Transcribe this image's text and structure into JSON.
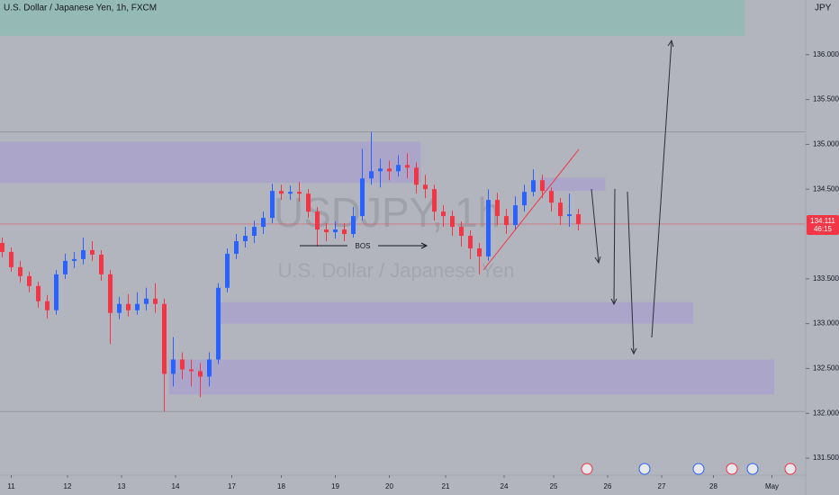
{
  "chart_data": {
    "type": "candlestick",
    "title": "U.S. Dollar / Japanese Yen, 1h, FXCM",
    "currency": "JPY",
    "watermark": [
      "USDJPY, 1h",
      "U.S. Dollar / Japanese Yen"
    ],
    "annotation": "BOS",
    "up_color": "#2962ff",
    "down_color": "#f23645",
    "x": [
      1,
      5,
      9,
      13,
      17,
      21,
      25,
      29,
      33,
      37,
      41,
      45,
      49,
      53,
      57,
      61,
      65,
      69,
      73,
      77,
      81,
      85,
      89,
      93,
      97,
      101,
      105,
      109,
      113,
      117,
      121,
      125,
      129,
      133,
      137,
      141,
      145,
      149,
      153,
      157,
      161,
      165,
      169,
      173,
      177,
      181,
      185,
      189,
      193,
      197,
      201,
      205,
      209,
      213,
      217,
      221,
      225,
      229,
      233,
      237,
      241,
      245,
      249,
      253,
      257
    ],
    "open": [
      133.9,
      133.8,
      133.63,
      133.53,
      133.42,
      133.25,
      133.15,
      133.55,
      133.7,
      133.72,
      133.82,
      133.77,
      133.55,
      133.12,
      133.22,
      133.15,
      133.22,
      133.28,
      133.22,
      132.44,
      132.6,
      132.49,
      132.47,
      132.41,
      132.6,
      133.4,
      133.78,
      133.92,
      133.98,
      134.08,
      134.18,
      134.48,
      134.45,
      134.47,
      134.45,
      134.25,
      134.05,
      134.02,
      134.05,
      134.0,
      134.2,
      134.62,
      134.7,
      134.73,
      134.7,
      134.77,
      134.74,
      134.55,
      134.5,
      134.25,
      134.2,
      134.08,
      133.98,
      133.84,
      133.75,
      134.38,
      134.2,
      134.1,
      134.32,
      134.47,
      134.6,
      134.48,
      134.35,
      134.2,
      134.22
    ],
    "high": [
      133.96,
      133.85,
      133.7,
      133.58,
      133.47,
      133.32,
      133.6,
      133.78,
      133.8,
      133.96,
      133.92,
      133.82,
      133.6,
      133.3,
      133.33,
      133.35,
      133.4,
      133.45,
      133.28,
      132.85,
      132.68,
      132.6,
      132.56,
      132.68,
      133.45,
      133.84,
      134.0,
      134.08,
      134.15,
      134.25,
      134.56,
      134.55,
      134.54,
      134.58,
      134.5,
      134.3,
      134.12,
      134.14,
      134.12,
      134.3,
      134.95,
      135.14,
      134.84,
      134.82,
      134.88,
      134.9,
      134.8,
      134.66,
      134.55,
      134.32,
      134.26,
      134.14,
      134.04,
      133.9,
      134.5,
      134.46,
      134.28,
      134.42,
      134.55,
      134.72,
      134.66,
      134.52,
      134.4,
      134.45,
      134.28
    ],
    "low": [
      133.74,
      133.58,
      133.46,
      133.35,
      133.18,
      133.06,
      133.1,
      133.5,
      133.62,
      133.66,
      133.7,
      133.48,
      132.77,
      133.05,
      133.08,
      133.1,
      133.15,
      133.12,
      132.02,
      132.3,
      132.38,
      132.3,
      132.18,
      132.3,
      132.55,
      133.35,
      133.72,
      133.85,
      133.9,
      134.0,
      134.12,
      134.38,
      134.38,
      134.36,
      134.18,
      133.86,
      133.92,
      133.95,
      133.92,
      133.96,
      134.15,
      134.55,
      134.52,
      134.6,
      134.64,
      134.62,
      134.45,
      134.4,
      134.15,
      134.08,
      133.98,
      133.86,
      133.72,
      133.55,
      133.7,
      134.1,
      134.0,
      134.05,
      134.25,
      134.42,
      134.4,
      134.25,
      134.1,
      134.08,
      134.04
    ],
    "close": [
      133.8,
      133.63,
      133.53,
      133.42,
      133.25,
      133.15,
      133.55,
      133.7,
      133.72,
      133.82,
      133.77,
      133.55,
      133.12,
      133.22,
      133.15,
      133.22,
      133.28,
      133.22,
      132.44,
      132.6,
      132.49,
      132.47,
      132.41,
      132.6,
      133.4,
      133.78,
      133.92,
      133.98,
      134.08,
      134.18,
      134.48,
      134.45,
      134.47,
      134.45,
      134.25,
      134.05,
      134.02,
      134.05,
      134.0,
      134.2,
      134.62,
      134.7,
      134.73,
      134.7,
      134.77,
      134.74,
      134.55,
      134.5,
      134.25,
      134.2,
      134.08,
      133.98,
      133.84,
      133.75,
      134.38,
      134.2,
      134.1,
      134.32,
      134.47,
      134.6,
      134.48,
      134.35,
      134.2,
      134.22,
      134.111
    ],
    "xlim": [
      0,
      358
    ],
    "ylim": [
      131.31,
      136.61
    ],
    "xticks": [
      {
        "value": 5,
        "label": "11"
      },
      {
        "value": 30,
        "label": "12"
      },
      {
        "value": 54,
        "label": "13"
      },
      {
        "value": 78,
        "label": "14"
      },
      {
        "value": 103,
        "label": "17"
      },
      {
        "value": 125,
        "label": "18"
      },
      {
        "value": 149,
        "label": "19"
      },
      {
        "value": 173,
        "label": "20"
      },
      {
        "value": 198,
        "label": "21"
      },
      {
        "value": 224,
        "label": "24"
      },
      {
        "value": 246,
        "label": "25"
      },
      {
        "value": 270,
        "label": "26"
      },
      {
        "value": 294,
        "label": "27"
      },
      {
        "value": 317,
        "label": "28"
      },
      {
        "value": 343,
        "label": "May"
      }
    ],
    "yticks": [
      {
        "value": 131.5,
        "label": "131.500"
      },
      {
        "value": 132,
        "label": "132.000"
      },
      {
        "value": 132.5,
        "label": "132.500"
      },
      {
        "value": 133,
        "label": "133.000"
      },
      {
        "value": 133.5,
        "label": "133.500"
      },
      {
        "value": 134.5,
        "label": "134.500"
      },
      {
        "value": 135,
        "label": "135.000"
      },
      {
        "value": 135.5,
        "label": "135.500"
      },
      {
        "value": 136,
        "label": "136.000"
      }
    ],
    "grid": false,
    "zones": [
      {
        "x": [
          0,
          331
        ],
        "y": [
          136.21,
          136.61
        ],
        "color": "#8fbab3"
      },
      {
        "x": [
          0,
          187
        ],
        "y": [
          134.57,
          135.03
        ],
        "color": "#a9a3cb"
      },
      {
        "x": [
          240,
          269
        ],
        "y": [
          134.48,
          134.63
        ],
        "color": "#a9a3cb"
      },
      {
        "x": [
          97,
          308
        ],
        "y": [
          133.0,
          133.24
        ],
        "color": "#a9a3cb"
      },
      {
        "x": [
          75,
          344
        ],
        "y": [
          132.21,
          132.6
        ],
        "color": "#a9a3cb"
      }
    ],
    "levels": [
      135.14,
      132.02
    ],
    "last_price": 134.111,
    "countdown": "46:15"
  }
}
